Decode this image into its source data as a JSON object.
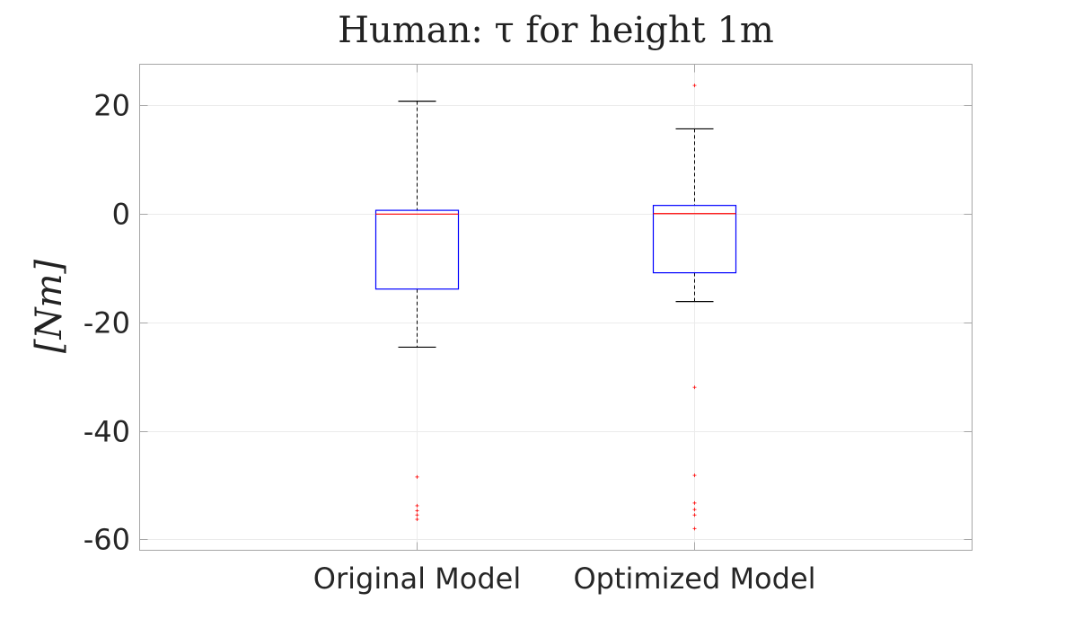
{
  "chart_data": {
    "type": "box",
    "title": "Human: τ for height 1m",
    "ylabel": "[Nm]",
    "xlabel": "",
    "ylim": [
      -62,
      27.5
    ],
    "yticks": [
      20,
      0,
      -20,
      -40,
      -60
    ],
    "ytick_labels": [
      "20",
      "0",
      "-20",
      "-40",
      "-60"
    ],
    "grid": true,
    "categories": [
      "Original Model",
      "Optimized Model"
    ],
    "boxes": [
      {
        "category": "Original Model",
        "whisker_high": 20.7,
        "q3": 0.6,
        "median": -0.1,
        "q1": -13.9,
        "whisker_low": -24.6,
        "outliers": [
          -48.5,
          -53.8,
          -54.7,
          -55.5,
          -56.3
        ]
      },
      {
        "category": "Optimized Model",
        "whisker_high": 15.6,
        "q3": 1.5,
        "median": 0.0,
        "q1": -10.9,
        "whisker_low": -16.2,
        "outliers": [
          23.6,
          -32.0,
          -48.2,
          -53.3,
          -54.5,
          -55.5,
          -58.0
        ]
      }
    ],
    "colors": {
      "box": "#0000ff",
      "median": "#ff0000",
      "whisker": "#000000",
      "outlier": "#ff0000",
      "grid": "#ebebeb",
      "axis": "#a6a6a6"
    }
  }
}
